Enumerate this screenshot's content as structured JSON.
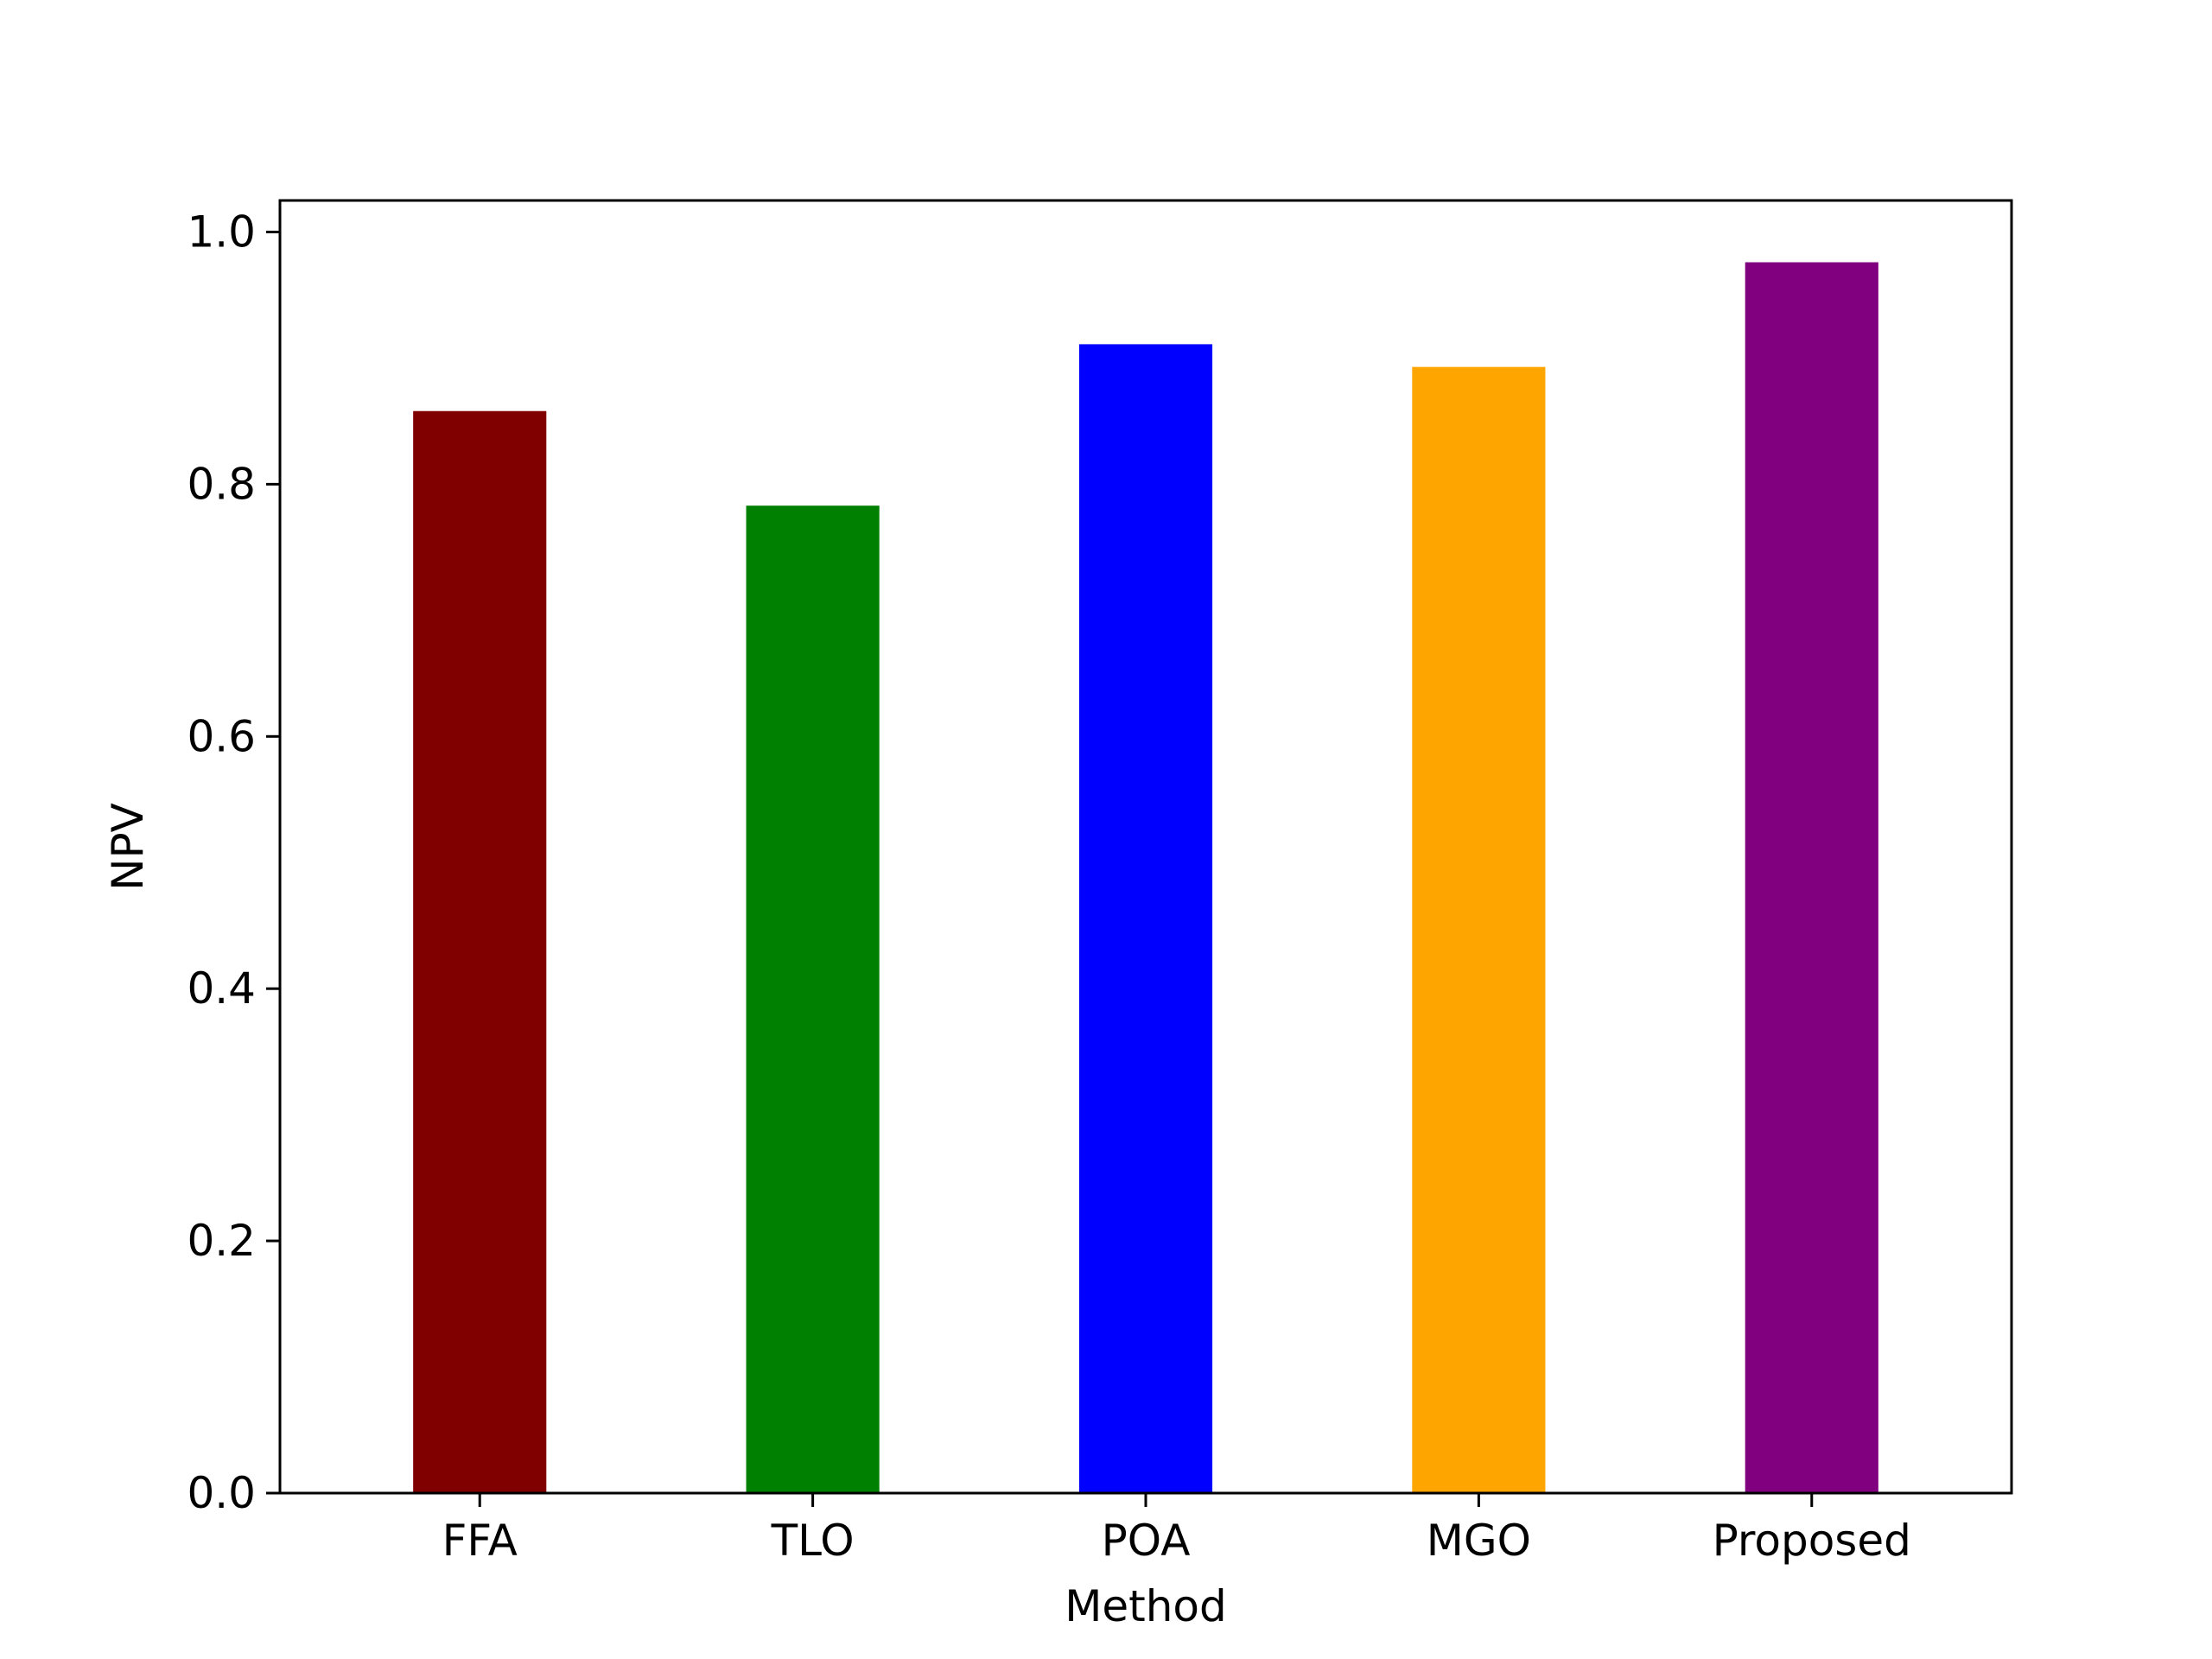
{
  "chart_data": {
    "type": "bar",
    "title": "",
    "xlabel": "Method",
    "ylabel": "NPV",
    "categories": [
      "FFA",
      "TLO",
      "POA",
      "MGO",
      "Proposed"
    ],
    "values": [
      0.858,
      0.783,
      0.911,
      0.893,
      0.976
    ],
    "colors": [
      "#800000",
      "#008000",
      "#0000ff",
      "#ffa500",
      "#800080"
    ],
    "ylim": [
      0,
      1.025
    ],
    "yticks": [
      {
        "value": 0.0,
        "label": "0.0"
      },
      {
        "value": 0.2,
        "label": "0.2"
      },
      {
        "value": 0.4,
        "label": "0.4"
      },
      {
        "value": 0.6,
        "label": "0.6"
      },
      {
        "value": 0.8,
        "label": "0.8"
      },
      {
        "value": 1.0,
        "label": "1.0"
      }
    ],
    "grid": false,
    "legend": "none"
  }
}
